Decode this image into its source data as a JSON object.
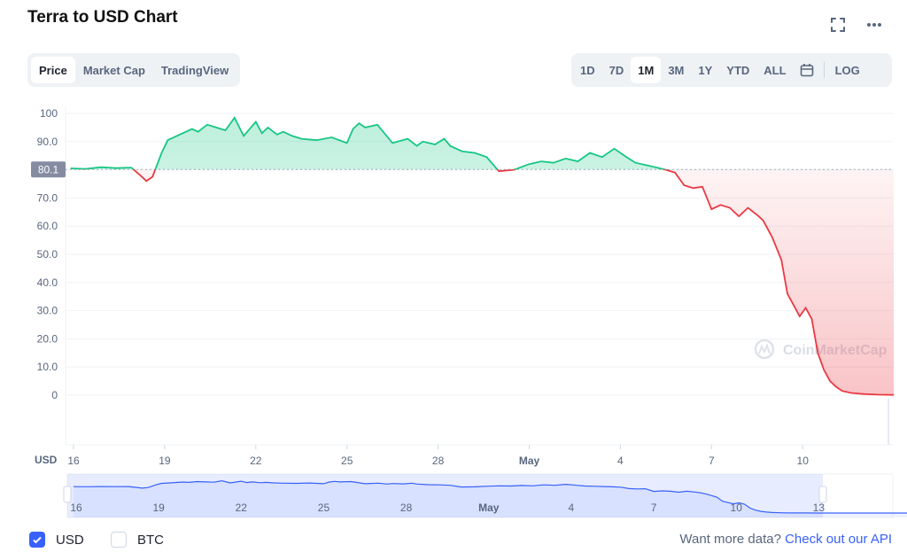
{
  "page": {
    "title": "Terra to USD Chart"
  },
  "icons": {
    "expand": "expand-icon",
    "more": "more-horizontal-icon",
    "calendar": "calendar-icon",
    "check": "check-icon",
    "watermark": "coinmarketcap-logo-icon"
  },
  "view_tabs": [
    {
      "label": "Price",
      "active": true
    },
    {
      "label": "Market Cap",
      "active": false
    },
    {
      "label": "TradingView",
      "active": false
    }
  ],
  "range_tabs": [
    {
      "label": "1D",
      "active": false
    },
    {
      "label": "7D",
      "active": false
    },
    {
      "label": "1M",
      "active": true
    },
    {
      "label": "3M",
      "active": false
    },
    {
      "label": "1Y",
      "active": false
    },
    {
      "label": "YTD",
      "active": false
    },
    {
      "label": "ALL",
      "active": false
    }
  ],
  "log_label": "LOG",
  "currency_options": [
    {
      "label": "USD",
      "checked": true
    },
    {
      "label": "BTC",
      "checked": false
    }
  ],
  "footer": {
    "text": "Want more data?",
    "link": "Check out our API"
  },
  "watermark": "CoinMarketCap",
  "colors": {
    "up": "#16c784",
    "down": "#ea3943",
    "navigator": "#3861fb",
    "accent": "#3861fb",
    "price_tag": "#858ca2"
  },
  "chart_data": {
    "type": "line",
    "currency_label": "USD",
    "current_price_label": "80.1",
    "reference_price": 80.1,
    "ylim": [
      0,
      100
    ],
    "y_ticks": [
      "100",
      "90.0",
      "80.0",
      "70.0",
      "60.0",
      "50.0",
      "40.0",
      "30.0",
      "20.0",
      "10.0",
      "0"
    ],
    "x_ticks": [
      "16",
      "19",
      "22",
      "25",
      "28",
      "May",
      "4",
      "7",
      "10"
    ],
    "navigator_ticks": [
      "16",
      "19",
      "22",
      "25",
      "28",
      "May",
      "4",
      "7",
      "10",
      "13"
    ],
    "x_days_start": "Apr 16",
    "x": [
      -0.1,
      0.4,
      0.9,
      1.4,
      1.9,
      2.2,
      2.4,
      2.6,
      2.9,
      3.1,
      3.4,
      3.9,
      4.1,
      4.4,
      4.7,
      5.0,
      5.3,
      5.6,
      6.0,
      6.2,
      6.4,
      6.7,
      6.9,
      7.2,
      7.5,
      8.0,
      8.5,
      9.0,
      9.2,
      9.4,
      9.6,
      10.0,
      10.5,
      11.0,
      11.3,
      11.5,
      11.9,
      12.2,
      12.4,
      12.8,
      13.2,
      13.6,
      14.0,
      14.5,
      15.0,
      15.4,
      15.8,
      16.2,
      16.6,
      17.0,
      17.4,
      17.8,
      18.2,
      18.5,
      18.9,
      19.2,
      19.5,
      19.8,
      20.1,
      20.4,
      20.7,
      21.0,
      21.3,
      21.6,
      21.9,
      22.2,
      22.5,
      22.7,
      23.0,
      23.3,
      23.5,
      23.7,
      23.9,
      24.1,
      24.3,
      24.5,
      24.7,
      24.9,
      25.1,
      25.3,
      25.6,
      26.0,
      26.5,
      27.0
    ],
    "y": [
      80.5,
      80.3,
      80.9,
      80.6,
      80.8,
      78.0,
      76.0,
      77.5,
      86.0,
      90.5,
      92.0,
      94.5,
      93.5,
      96.0,
      95.0,
      94.0,
      98.5,
      92.0,
      97.0,
      93.0,
      95.0,
      92.5,
      93.5,
      92.0,
      91.0,
      90.5,
      91.5,
      89.5,
      94.5,
      96.5,
      95.0,
      96.0,
      89.5,
      91.0,
      88.5,
      90.0,
      89.0,
      91.0,
      88.5,
      86.5,
      86.0,
      84.5,
      79.5,
      80.0,
      82.0,
      83.0,
      82.5,
      84.0,
      83.0,
      86.0,
      84.5,
      87.5,
      84.5,
      82.5,
      81.5,
      80.8,
      80.0,
      79.0,
      74.5,
      73.5,
      74.0,
      66.0,
      67.5,
      66.5,
      63.5,
      66.5,
      64.0,
      62.0,
      56.0,
      48.0,
      36.0,
      32.0,
      28.0,
      31.0,
      27.0,
      15.0,
      9.0,
      5.0,
      3.0,
      1.5,
      0.8,
      0.4,
      0.2,
      0.1
    ]
  }
}
